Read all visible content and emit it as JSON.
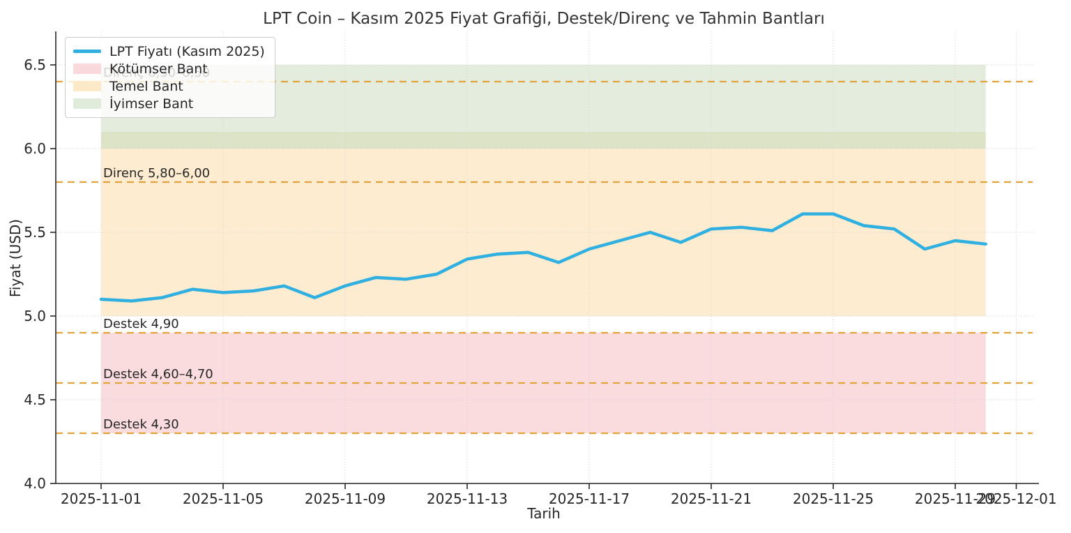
{
  "chart_data": {
    "type": "line",
    "title": "LPT Coin – Kasım 2025 Fiyat Grafiği, Destek/Direnç ve Tahmin Bantları",
    "xlabel": "Tarih",
    "ylabel": "Fiyat (USD)",
    "ylim": [
      4.0,
      6.7
    ],
    "grid": true,
    "legend_position": "upper-left",
    "series": [
      {
        "name": "LPT Fiyatı (Kasım 2025)",
        "x": [
          "2025-11-01",
          "2025-11-02",
          "2025-11-03",
          "2025-11-04",
          "2025-11-05",
          "2025-11-06",
          "2025-11-07",
          "2025-11-08",
          "2025-11-09",
          "2025-11-10",
          "2025-11-11",
          "2025-11-12",
          "2025-11-13",
          "2025-11-14",
          "2025-11-15",
          "2025-11-16",
          "2025-11-17",
          "2025-11-18",
          "2025-11-19",
          "2025-11-20",
          "2025-11-21",
          "2025-11-22",
          "2025-11-23",
          "2025-11-24",
          "2025-11-25",
          "2025-11-26",
          "2025-11-27",
          "2025-11-28",
          "2025-11-29",
          "2025-11-30"
        ],
        "values": [
          5.1,
          5.09,
          5.11,
          5.16,
          5.14,
          5.15,
          5.18,
          5.11,
          5.18,
          5.23,
          5.22,
          5.25,
          5.34,
          5.37,
          5.38,
          5.32,
          5.4,
          5.45,
          5.5,
          5.44,
          5.52,
          5.53,
          5.51,
          5.61,
          5.61,
          5.54,
          5.52,
          5.4,
          5.45,
          5.43
        ]
      }
    ],
    "bands": [
      {
        "name": "İyimser Bant",
        "from": 6.0,
        "to": 6.5
      },
      {
        "name": "Temel Bant",
        "from": 5.0,
        "to": 6.1
      },
      {
        "name": "Kötümser Bant",
        "from": 4.3,
        "to": 4.9
      }
    ],
    "band_segments": [
      {
        "name": "iyimser-band",
        "from": 6.1,
        "to": 6.5,
        "color": "#e4ecde"
      },
      {
        "name": "iyimser-temel-overlap",
        "from": 6.0,
        "to": 6.1,
        "color": "#dce3c6"
      },
      {
        "name": "temel-band",
        "from": 5.0,
        "to": 6.0,
        "color": "#fdecd0"
      },
      {
        "name": "kotumser-band",
        "from": 4.3,
        "to": 4.9,
        "color": "#fadcdf"
      }
    ],
    "levels": [
      {
        "label": "Direnç 6,30–6,50",
        "value": 6.4
      },
      {
        "label": "Direnç 5,80–6,00",
        "value": 5.8
      },
      {
        "label": "Destek 4,90",
        "value": 4.9
      },
      {
        "label": "Destek 4,60–4,70",
        "value": 4.6
      },
      {
        "label": "Destek 4,30",
        "value": 4.3
      }
    ],
    "x_ticks": [
      {
        "label": "2025-11-01",
        "day": 0
      },
      {
        "label": "2025-11-05",
        "day": 4
      },
      {
        "label": "2025-11-09",
        "day": 8
      },
      {
        "label": "2025-11-13",
        "day": 12
      },
      {
        "label": "2025-11-17",
        "day": 16
      },
      {
        "label": "2025-11-21",
        "day": 20
      },
      {
        "label": "2025-11-25",
        "day": 24
      },
      {
        "label": "2025-11-29",
        "day": 28
      },
      {
        "label": "2025-12-01",
        "day": 30
      }
    ],
    "y_ticks": [
      "4.0",
      "4.5",
      "5.0",
      "5.5",
      "6.0",
      "6.5"
    ],
    "colors": {
      "price_line": "#2fb0e0",
      "level_line": "#e2a33c",
      "grid": "#d8d8d8",
      "spine": "#262626",
      "text": "#262626",
      "title": "#333333"
    }
  },
  "legend": {
    "items": [
      {
        "label": "LPT Fiyatı (Kasım 2025)",
        "swatch": "line",
        "color": "#2fb0e0"
      },
      {
        "label": "Kötümser Bant",
        "swatch": "patch",
        "color": "#f9d9dc"
      },
      {
        "label": "Temel Bant",
        "swatch": "patch",
        "color": "#fce9c8"
      },
      {
        "label": "İyimser Bant",
        "swatch": "patch",
        "color": "#e1ebda"
      }
    ]
  }
}
